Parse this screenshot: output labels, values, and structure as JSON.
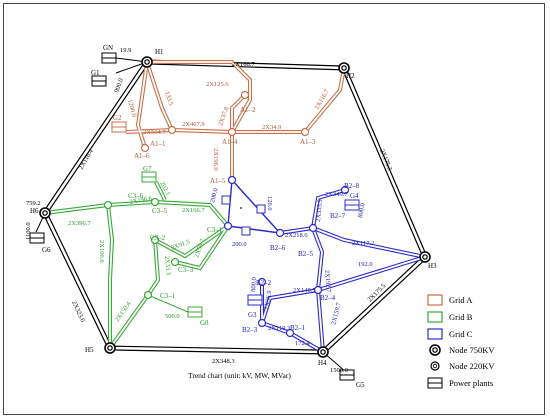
{
  "nodes": {
    "GN": "GN",
    "H1": "H1",
    "H2": "H2",
    "H3": "H3",
    "H4": "H4",
    "H5": "H5",
    "H6": "H6",
    "G1": "G1",
    "G2": "G2",
    "G3": "G3",
    "G4": "G4",
    "G5": "G5",
    "G6": "G6",
    "G7": "G7",
    "G8": "G8",
    "A1_1": "A1–1",
    "A1_2": "A1–2",
    "A1_3": "A1–3",
    "A1_4": "A1–4",
    "A1_5": "A1–5",
    "A1_6": "A1–6",
    "B2_1": "B2–1",
    "B2_2": "B2–2",
    "B2_3": "B2–3",
    "B2_4": "B2–4",
    "B2_5": "B2–5",
    "B2_6": "B2–6",
    "B2_7": "B2–7",
    "B2_8": "B2–8",
    "C3_1": "C3–1",
    "C3_2": "C3–2",
    "C3_3": "C3–3",
    "C3_5": "C3–5",
    "C3_6": "C3–6"
  },
  "flows": {
    "gn_h1": "19.9",
    "g1_h1": "900.0",
    "h1_h2": "2X166.7",
    "h2_h3": "2X175.3",
    "h3_h4": "2X175.5",
    "h4_h5": "2X348.3",
    "h5_h6": "2X323.6",
    "h6_h1": "2X116.4",
    "h6_voltage": "759.2",
    "g6_h6": "1100.0",
    "g5_h4": "1500.0",
    "h1_a14": "2X125.6",
    "h1_a16": "1200.0",
    "h1_a1": "133.5",
    "g2_a11": "2X564.7",
    "a11_a14": "2X407.9",
    "a12_a14": "2X37.8",
    "a14_a13": "2X34.9",
    "h2_a13": "2X116.7",
    "a14_a15": "2X196.0",
    "a15_c35": "200.0",
    "a15_b26": "120.0",
    "h6_c36": "2X396.7",
    "c36_c35": "2X196.6",
    "g7_c35": "202.1",
    "c35_c31": "2X166.7",
    "c36_c31": "2X100.6",
    "c32_c33": "2X91.5",
    "c32_c31x": "2X33.3",
    "c31_c33": "2X59.7",
    "c31_b26": "200.0",
    "h5_c31": "2X150.4",
    "g8_c31": "500.0",
    "b26_b25": "2X218.6",
    "b25_h3": "2X117.2",
    "b27_b25": "2X335.9",
    "b28_b27": "2X349.7",
    "g4_b27": "800.0",
    "b25_b24": "2X192.7",
    "b24_h3": "192.0",
    "b23_b24": "2X148.5",
    "b22_b23": "2X96.9",
    "g3_b22": "800.0",
    "b23_b21": "2X119.3",
    "b21_h4": "172.4",
    "b24_h4": "2X159.7"
  },
  "legend": {
    "grid_a": "Grid A",
    "grid_b": "Grid B",
    "grid_c": "Grid C",
    "node750": "Node 750KV",
    "node220": "Node 220KV",
    "plants": "Power plants"
  },
  "caption": "Trend chart (unit: kV, MW, MVar)",
  "colors": {
    "grid_a": "#c8704a",
    "grid_b": "#3aa83a",
    "grid_c": "#2b2bc8",
    "backbone": "#000000"
  }
}
